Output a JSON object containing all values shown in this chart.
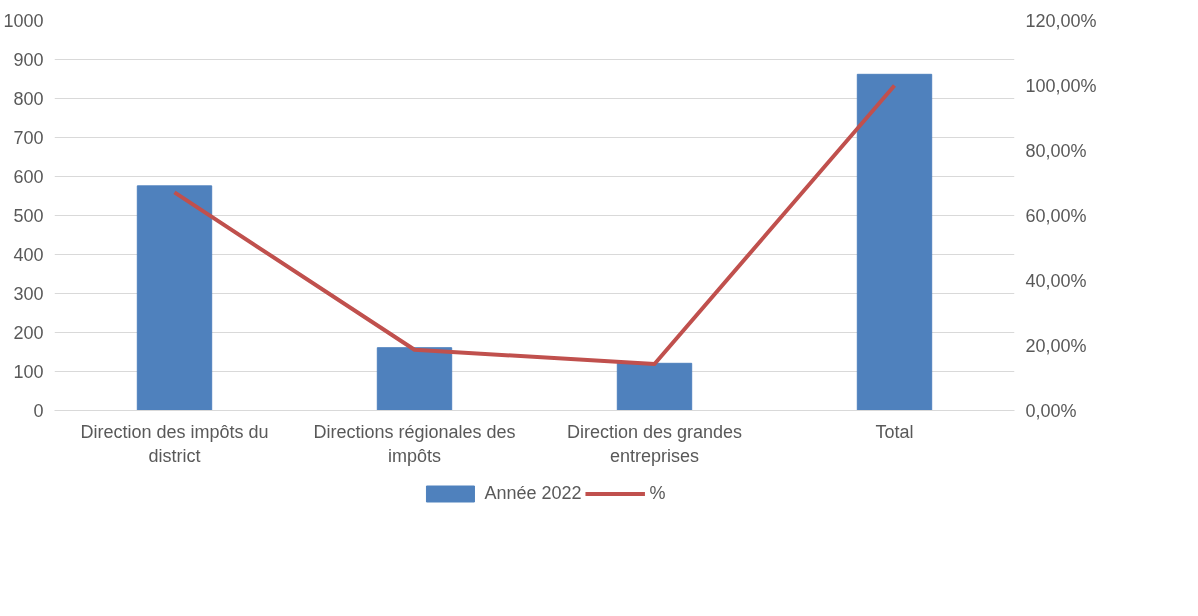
{
  "chart_data": {
    "type": "bar",
    "categories": [
      "Direction des impôts du district",
      "Directions régionales des impôts",
      "Direction des grandes entreprises",
      "Total"
    ],
    "series": [
      {
        "name": "Année 2022",
        "color": "#4f81bd",
        "values": [
          576,
          161,
          121,
          862
        ]
      },
      {
        "name": "%",
        "type": "line",
        "axis": "y2",
        "color": "#c0504d",
        "values": [
          67.1,
          18.7,
          14.3,
          100
        ]
      }
    ],
    "ylim": [
      0,
      1000
    ],
    "yticks": [
      0,
      100,
      200,
      300,
      400,
      500,
      600,
      700,
      800,
      900,
      1000
    ],
    "y2lim": [
      0,
      120
    ],
    "y2ticks": [
      {
        "value": 0,
        "label": "0,00%"
      },
      {
        "value": 20,
        "label": "20,00%"
      },
      {
        "value": 40,
        "label": "40,00%"
      },
      {
        "value": 60,
        "label": "60,00%"
      },
      {
        "value": 80,
        "label": "80,00%"
      },
      {
        "value": 100,
        "label": "100,00%"
      },
      {
        "value": 120,
        "label": "120,00%"
      }
    ],
    "grid": "y",
    "legend": "bottom",
    "marker": "none",
    "line_style": "solid"
  }
}
